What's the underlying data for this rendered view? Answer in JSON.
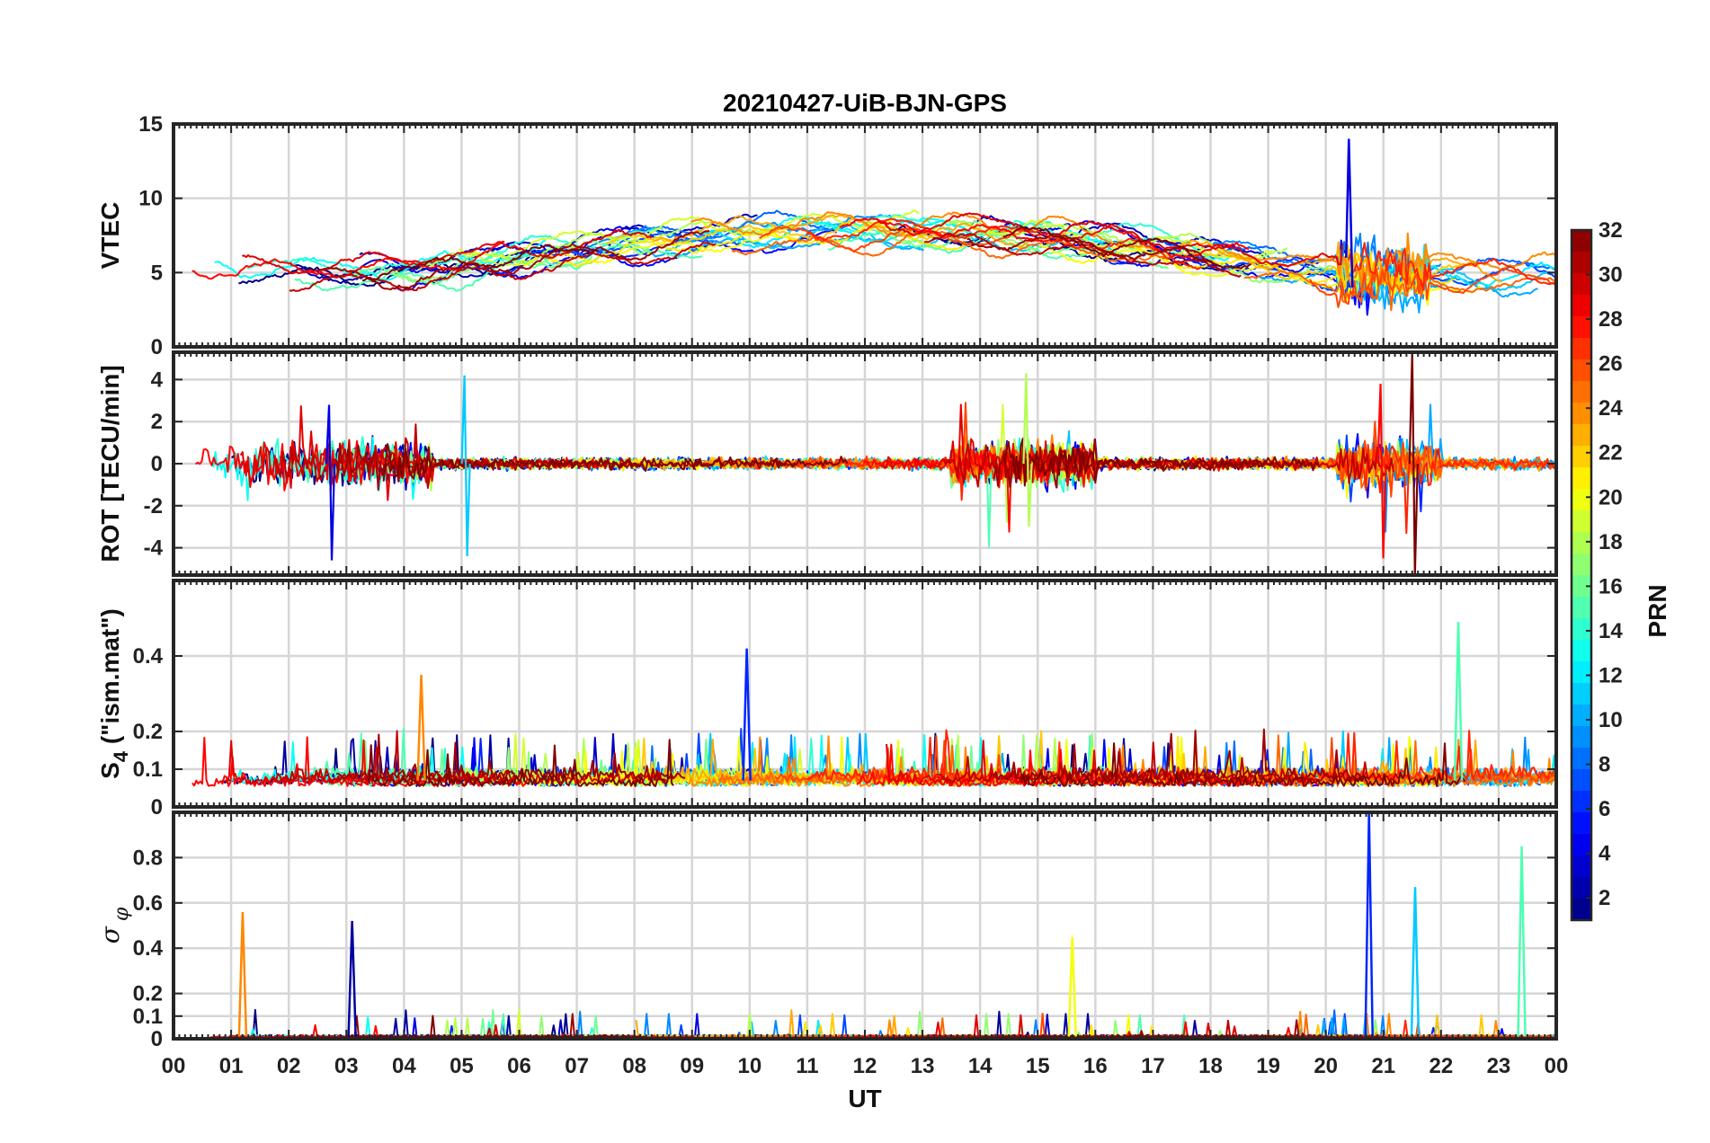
{
  "chart_data": {
    "type": "line",
    "title": "20210427-UiB-BJN-GPS",
    "xlabel": "UT",
    "x_ticks": [
      "00",
      "01",
      "02",
      "03",
      "04",
      "05",
      "06",
      "07",
      "08",
      "09",
      "10",
      "11",
      "12",
      "13",
      "14",
      "15",
      "16",
      "17",
      "18",
      "19",
      "20",
      "21",
      "22",
      "23",
      "00"
    ],
    "xlim_hours": [
      0,
      24
    ],
    "grid": true,
    "colorbar": {
      "label": "PRN",
      "range": [
        1,
        32
      ],
      "ticks": [
        "2",
        "4",
        "6",
        "8",
        "10",
        "12",
        "14",
        "16",
        "18",
        "20",
        "22",
        "24",
        "26",
        "28",
        "30",
        "32"
      ],
      "colormap": "jet"
    },
    "panels": [
      {
        "id": "vtec",
        "ylabel": "VTEC",
        "ylim": [
          0,
          15
        ],
        "yticks": [
          "0",
          "5",
          "10",
          "15"
        ],
        "features": {
          "baseline_range": [
            4,
            9
          ],
          "max_spike": {
            "x_hour": 20.4,
            "y": 14
          }
        }
      },
      {
        "id": "rot",
        "ylabel": "ROT [TECU/min]",
        "ylim": [
          -5.3,
          5.3
        ],
        "yticks": [
          "-4",
          "-2",
          "0",
          "2",
          "4"
        ],
        "features": {
          "active_intervals_hours": [
            [
              0.5,
              4.5
            ],
            [
              13.5,
              16
            ],
            [
              20.2,
              22
            ]
          ],
          "max_abs": 5.3
        }
      },
      {
        "id": "s4",
        "ylabel_main": "S",
        "ylabel_sub": "4",
        "ylabel_rest": " (\"ism.mat\")",
        "ylim": [
          0,
          0.6
        ],
        "yticks": [
          "0",
          "0.1",
          "0.2",
          "0.4"
        ],
        "features": {
          "baseline": 0.07,
          "peaks": [
            {
              "x_hour": 9.95,
              "y": 0.42
            },
            {
              "x_hour": 22.3,
              "y": 0.49
            },
            {
              "x_hour": 4.3,
              "y": 0.35
            }
          ]
        }
      },
      {
        "id": "sigma_phi",
        "ylabel_sym": "σ",
        "ylabel_sub": "φ",
        "ylim": [
          0,
          1.0
        ],
        "yticks": [
          "0",
          "0.1",
          "0.2",
          "0.4",
          "0.6",
          "0.8"
        ],
        "features": {
          "baseline": 0.01,
          "peaks": [
            {
              "x_hour": 20.75,
              "y": 1.0
            },
            {
              "x_hour": 23.4,
              "y": 0.85
            },
            {
              "x_hour": 1.2,
              "y": 0.56
            },
            {
              "x_hour": 3.1,
              "y": 0.52
            },
            {
              "x_hour": 21.55,
              "y": 0.67
            },
            {
              "x_hour": 15.6,
              "y": 0.45
            }
          ]
        }
      }
    ]
  }
}
